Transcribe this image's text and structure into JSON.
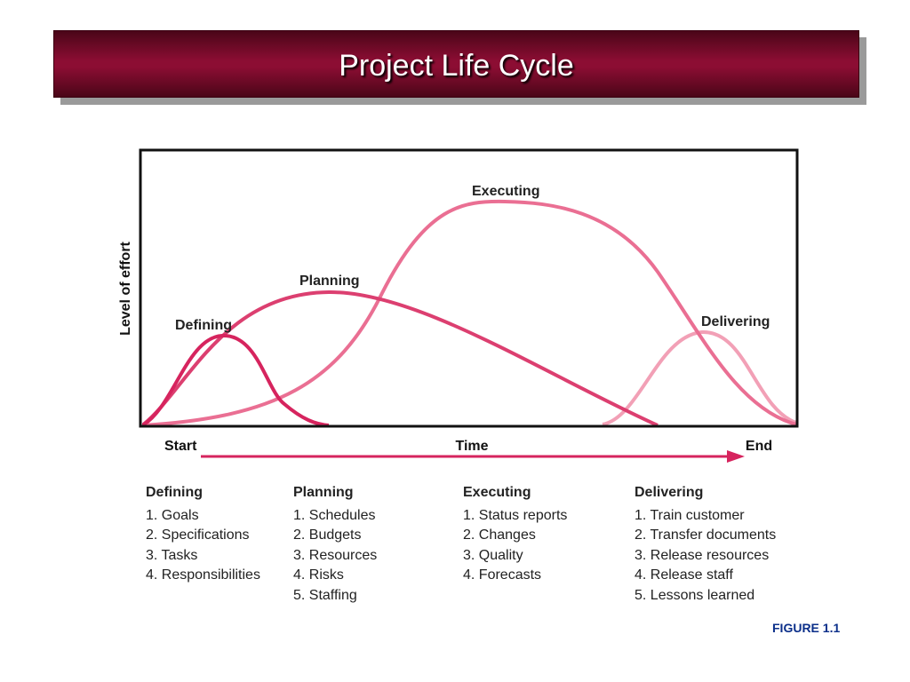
{
  "title": "Project Life Cycle",
  "diagram": {
    "y_axis_label": "Level of effort",
    "x_axis_label": "Time",
    "start_label": "Start",
    "end_label": "End",
    "curve_labels": {
      "defining": "Defining",
      "planning": "Planning",
      "executing": "Executing",
      "delivering": "Delivering"
    },
    "colors": {
      "defining": "#d6245e",
      "planning": "#dc3f70",
      "executing": "#ea6f93",
      "delivering": "#f2a0b6",
      "time_arrow": "#d6245e"
    }
  },
  "phases": [
    {
      "name": "Defining",
      "items": [
        "1. Goals",
        "2. Specifications",
        "3. Tasks",
        "4. Responsibilities"
      ]
    },
    {
      "name": "Planning",
      "items": [
        "1. Schedules",
        "2. Budgets",
        "3. Resources",
        "4. Risks",
        "5. Staffing"
      ]
    },
    {
      "name": "Executing",
      "items": [
        "1. Status reports",
        "2. Changes",
        "3. Quality",
        "4. Forecasts"
      ]
    },
    {
      "name": "Delivering",
      "items": [
        "1. Train customer",
        "2. Transfer documents",
        "3. Release resources",
        "4. Release staff",
        "5. Lessons learned"
      ]
    }
  ],
  "figure_label": "FIGURE 1.1"
}
